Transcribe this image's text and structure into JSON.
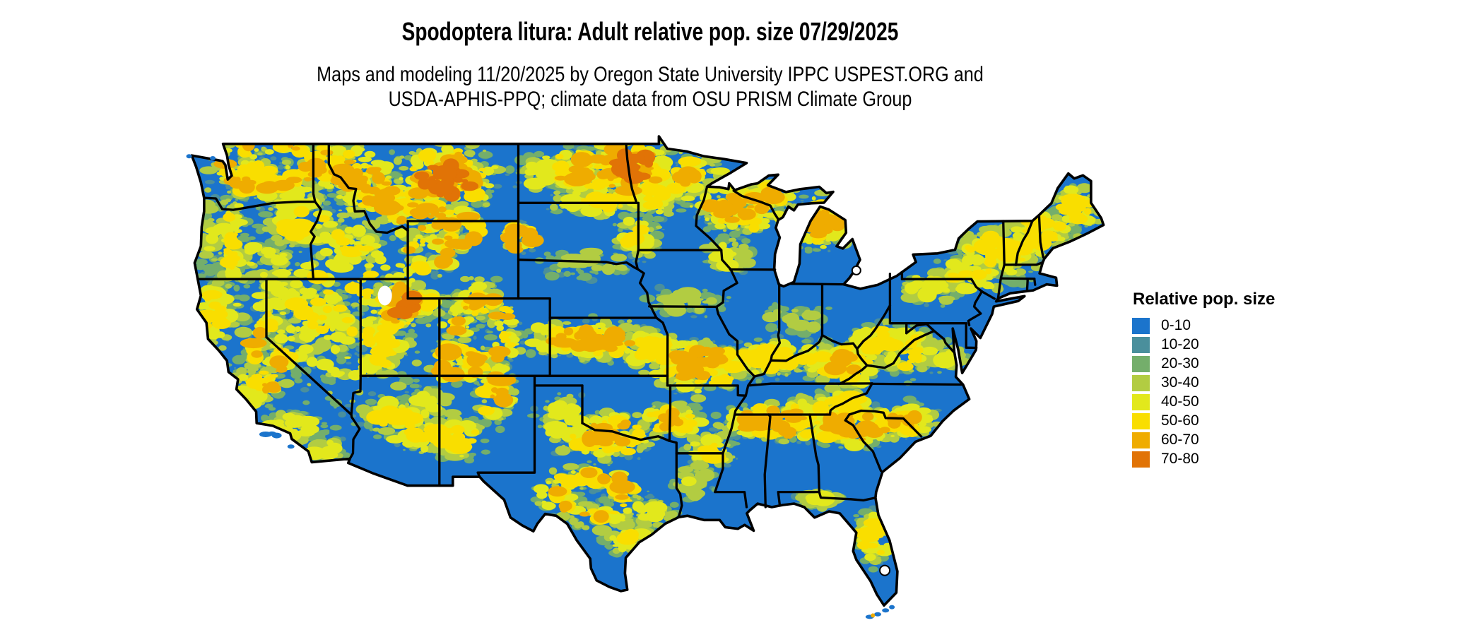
{
  "figure": {
    "title": "Spodoptera litura: Adult relative pop. size 07/29/2025",
    "subtitle_line1": "Maps and modeling 11/20/2025 by Oregon State University IPPC USPEST.ORG and",
    "subtitle_line2": "USDA-APHIS-PPQ; climate data from OSU PRISM Climate Group"
  },
  "legend": {
    "title": "Relative pop. size",
    "items": [
      {
        "label": "0-10",
        "color": "#1B74CC"
      },
      {
        "label": "10-20",
        "color": "#4A8F9C"
      },
      {
        "label": "20-30",
        "color": "#74AE6B"
      },
      {
        "label": "30-40",
        "color": "#B2CC42"
      },
      {
        "label": "40-50",
        "color": "#E2E81C"
      },
      {
        "label": "50-60",
        "color": "#F9DE00"
      },
      {
        "label": "60-70",
        "color": "#EFAC00"
      },
      {
        "label": "70-80",
        "color": "#E17306"
      }
    ]
  },
  "map": {
    "region": "Contiguous United States",
    "base_color": "#1B74CC",
    "border_color": "#000000",
    "background_color": "#FFFFFF"
  }
}
